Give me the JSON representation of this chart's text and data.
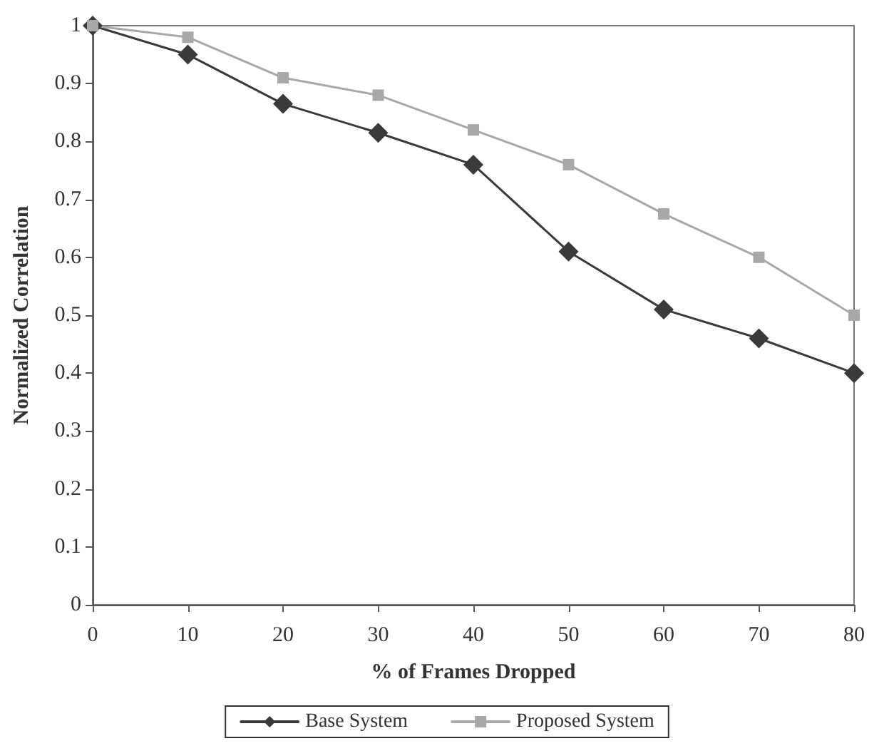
{
  "chart_data": {
    "type": "line",
    "xlabel": "% of Frames Dropped",
    "ylabel": "Normalized Correlation",
    "x": [
      0,
      10,
      20,
      30,
      40,
      50,
      60,
      70,
      80
    ],
    "series": [
      {
        "name": "Base System",
        "color": "#3a3a3a",
        "marker": "diamond",
        "values": [
          1,
          0.95,
          0.865,
          0.815,
          0.76,
          0.61,
          0.51,
          0.46,
          0.4
        ]
      },
      {
        "name": "Proposed System",
        "color": "#a8a8a8",
        "marker": "square",
        "values": [
          1,
          0.98,
          0.91,
          0.88,
          0.82,
          0.76,
          0.675,
          0.6,
          0.5
        ]
      }
    ],
    "xlim": [
      0,
      80
    ],
    "xticks": [
      0,
      10,
      20,
      30,
      40,
      50,
      60,
      70,
      80
    ],
    "ylim": [
      0,
      1
    ],
    "yticks": [
      0,
      0.1,
      0.2,
      0.3,
      0.4,
      0.5,
      0.6,
      0.7,
      0.8,
      0.9,
      1
    ],
    "grid": false,
    "legend": "bottom",
    "line_style": "solid"
  }
}
